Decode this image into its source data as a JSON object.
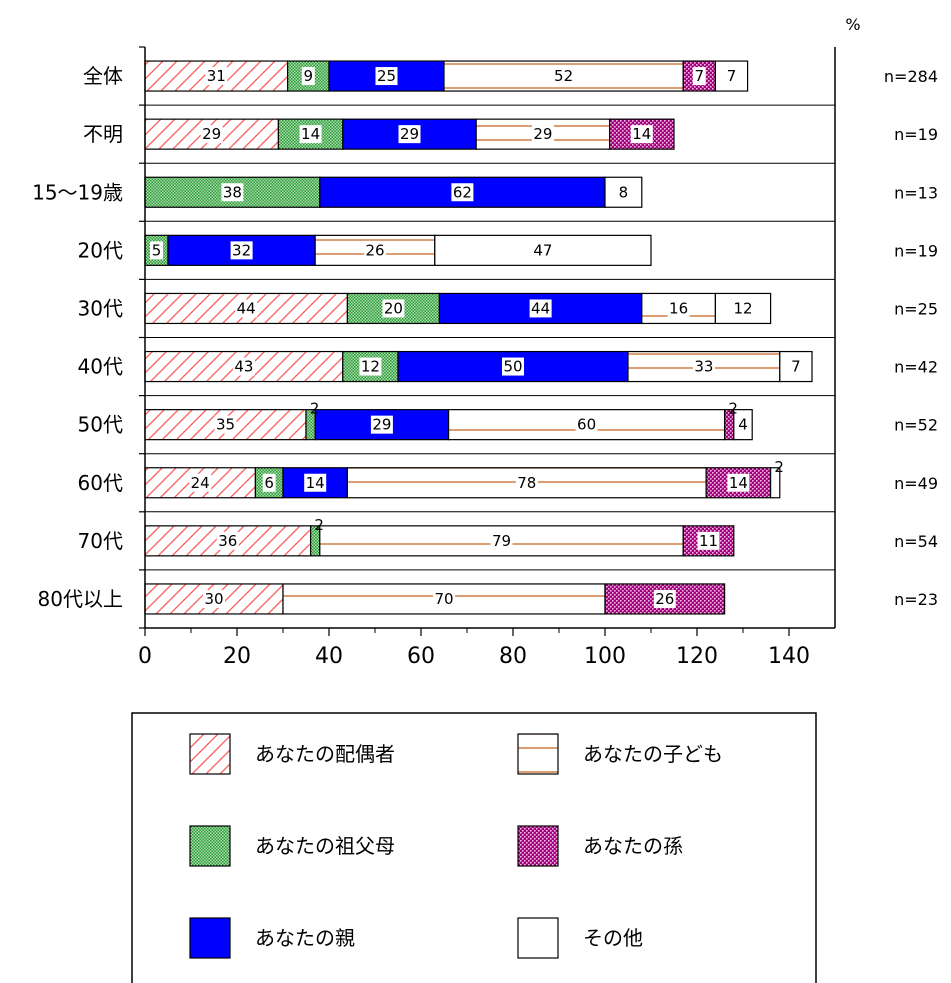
{
  "chart_data": {
    "type": "bar",
    "stacked": true,
    "orientation": "horizontal",
    "unit": "%",
    "categories": [
      "全体",
      "不明",
      "15〜19歳",
      "20代",
      "30代",
      "40代",
      "50代",
      "60代",
      "70代",
      "80代以上"
    ],
    "sample_sizes": [
      "n=284",
      "n=19",
      "n=13",
      "n=19",
      "n=25",
      "n=42",
      "n=52",
      "n=49",
      "n=54",
      "n=23"
    ],
    "series": [
      {
        "name": "あなたの配偶者",
        "values": [
          31,
          29,
          0,
          0,
          44,
          43,
          35,
          24,
          36,
          30
        ],
        "labels": [
          "31",
          "29",
          "",
          "",
          "44",
          "43",
          "35",
          "24",
          "36",
          "30"
        ]
      },
      {
        "name": "あなたの祖父母",
        "values": [
          9,
          14,
          38,
          5,
          20,
          12,
          2,
          6,
          2,
          0
        ],
        "labels": [
          "9",
          "14",
          "38",
          "5",
          "20",
          "12",
          "2",
          "6",
          "2",
          ""
        ]
      },
      {
        "name": "あなたの親",
        "values": [
          25,
          29,
          62,
          32,
          44,
          50,
          29,
          14,
          0,
          0
        ],
        "labels": [
          "25",
          "29",
          "62",
          "32",
          "44",
          "50",
          "29",
          "14",
          "",
          ""
        ]
      },
      {
        "name": "あなたの子ども",
        "values": [
          52,
          29,
          0,
          26,
          16,
          33,
          60,
          78,
          79,
          70
        ],
        "labels": [
          "52",
          "29",
          "",
          "26",
          "16",
          "33",
          "60",
          "78",
          "79",
          "70"
        ]
      },
      {
        "name": "あなたの孫",
        "values": [
          7,
          14,
          0,
          0,
          0,
          0,
          2,
          14,
          11,
          26
        ],
        "labels": [
          "7",
          "14",
          "",
          "",
          "",
          "",
          "2",
          "14",
          "11",
          "26"
        ]
      },
      {
        "name": "その他",
        "values": [
          7,
          0,
          8,
          47,
          12,
          7,
          4,
          2,
          0,
          0
        ],
        "labels": [
          "7",
          "",
          "8",
          "47",
          "12",
          "7",
          "4",
          "2",
          "",
          ""
        ]
      }
    ],
    "xlim": [
      0,
      150
    ],
    "xticks": [
      0,
      20,
      40,
      60,
      80,
      100,
      120,
      140
    ],
    "legend_position": "bottom"
  },
  "colors": {
    "spouse_stripe": "#ff5a5a",
    "grandparent": "#3cb44b",
    "parent": "#0000ff",
    "child_line": "#c8651e",
    "grandchild": "#a0007a",
    "other": "#ffffff"
  }
}
